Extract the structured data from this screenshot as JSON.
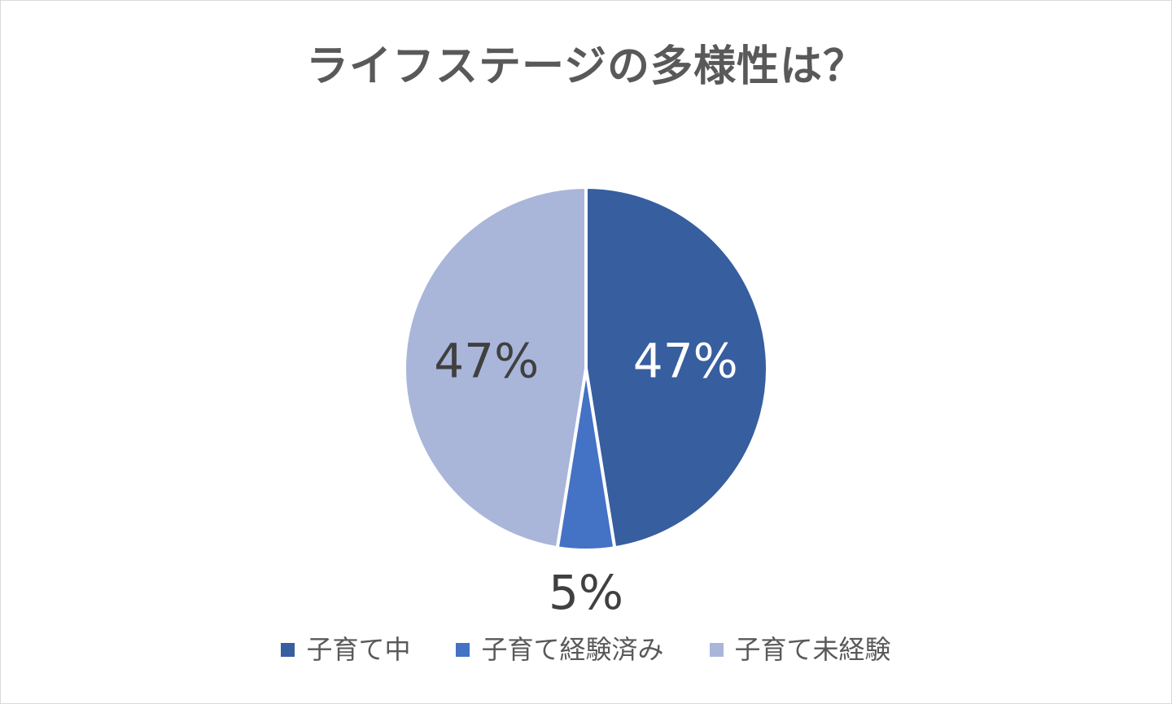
{
  "chart_data": {
    "type": "pie",
    "title": "ライフステージの多様性は？",
    "categories": [
      "子育て中",
      "子育て経験済み",
      "子育て未経験"
    ],
    "values": [
      47,
      5,
      47
    ],
    "data_labels": [
      "47%",
      "5%",
      "47%"
    ],
    "colors": [
      "#375e9f",
      "#4472c4",
      "#a9b6da"
    ],
    "label_colors": [
      "#ffffff",
      "#404040",
      "#404040"
    ],
    "legend_position": "bottom",
    "start_angle": "12 o'clock, clockwise"
  }
}
